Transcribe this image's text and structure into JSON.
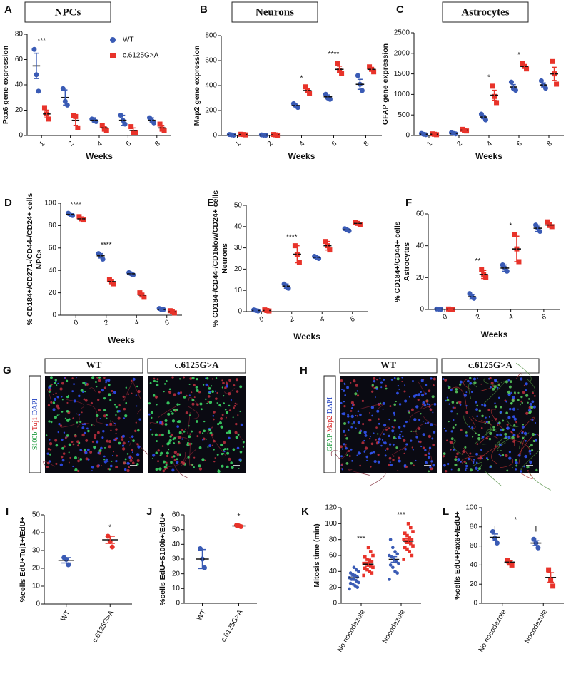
{
  "chart_data": [
    {
      "type": "dot",
      "panel": "A",
      "title": "NPCs",
      "ylabel": "Pax6 gene expression",
      "xlabel": "Weeks",
      "categories": [
        "1",
        "2",
        "4",
        "6",
        "8"
      ],
      "ylim": [
        0,
        80
      ],
      "yticks": [
        0,
        20,
        40,
        60,
        80
      ],
      "legend": "upper right",
      "series": [
        {
          "name": "WT",
          "color": "#3a5bb5",
          "marker": "circle",
          "points": [
            [
              68,
              48,
              35
            ],
            [
              37,
              27,
              24
            ],
            [
              13,
              12,
              11
            ],
            [
              16,
              12,
              9
            ],
            [
              14,
              12,
              10
            ]
          ],
          "mean": [
            55,
            30,
            12,
            12,
            12
          ],
          "sem": [
            10,
            6,
            2,
            4,
            2
          ]
        },
        {
          "name": "c.6125G>A",
          "color": "#e8332a",
          "marker": "square",
          "points": [
            [
              22,
              17,
              13
            ],
            [
              16,
              15,
              6
            ],
            [
              8,
              5,
              4
            ],
            [
              7,
              2,
              2
            ],
            [
              9,
              5,
              4
            ]
          ],
          "mean": [
            17,
            12,
            6,
            4,
            6
          ],
          "sem": [
            3,
            4,
            1,
            2,
            2
          ]
        }
      ],
      "annotations": [
        {
          "text": "***",
          "category": "1"
        }
      ]
    },
    {
      "type": "dot",
      "panel": "B",
      "title": "Neurons",
      "ylabel": "Map2 gene expression",
      "xlabel": "Weeks",
      "categories": [
        "1",
        "2",
        "4",
        "6",
        "8"
      ],
      "ylim": [
        0,
        800
      ],
      "yticks": [
        0,
        200,
        400,
        600,
        800
      ],
      "series": [
        {
          "color": "#3a5bb5",
          "marker": "circle",
          "points": [
            [
              8,
              5,
              3
            ],
            [
              5,
              3,
              2
            ],
            [
              255,
              240,
              225
            ],
            [
              330,
              300,
              290
            ],
            [
              480,
              410,
              360
            ]
          ],
          "mean": [
            5,
            3,
            240,
            310,
            410
          ],
          "sem": [
            2,
            1,
            10,
            15,
            40
          ]
        },
        {
          "color": "#e8332a",
          "marker": "square",
          "points": [
            [
              10,
              8,
              5
            ],
            [
              8,
              5,
              3
            ],
            [
              390,
              360,
              340
            ],
            [
              580,
              520,
              500
            ],
            [
              550,
              530,
              510
            ]
          ],
          "mean": [
            8,
            5,
            360,
            530,
            530
          ],
          "sem": [
            2,
            2,
            15,
            25,
            12
          ]
        }
      ],
      "annotations": [
        {
          "text": "*",
          "category": "4"
        },
        {
          "text": "****",
          "category": "6"
        }
      ]
    },
    {
      "type": "dot",
      "panel": "C",
      "title": "Astrocytes",
      "ylabel": "GFAP gene  expression",
      "xlabel": "Weeks",
      "categories": [
        "1",
        "2",
        "4",
        "6",
        "8"
      ],
      "ylim": [
        0,
        2500
      ],
      "yticks": [
        0,
        500,
        1000,
        1500,
        2000,
        2500
      ],
      "series": [
        {
          "color": "#3a5bb5",
          "marker": "circle",
          "points": [
            [
              50,
              30,
              20
            ],
            [
              70,
              50,
              40
            ],
            [
              520,
              450,
              380
            ],
            [
              1300,
              1150,
              1100
            ],
            [
              1330,
              1230,
              1150
            ]
          ],
          "mean": [
            30,
            50,
            450,
            1180,
            1230
          ],
          "sem": [
            10,
            10,
            40,
            60,
            50
          ]
        },
        {
          "color": "#e8332a",
          "marker": "square",
          "points": [
            [
              40,
              30,
              20
            ],
            [
              150,
              130,
              110
            ],
            [
              1200,
              950,
              800
            ],
            [
              1750,
              1680,
              1620
            ],
            [
              1800,
              1500,
              1250
            ]
          ],
          "mean": [
            30,
            130,
            980,
            1680,
            1500
          ],
          "sem": [
            10,
            12,
            120,
            40,
            160
          ]
        }
      ],
      "annotations": [
        {
          "text": "*",
          "category": "4"
        },
        {
          "text": "*",
          "category": "6"
        }
      ]
    },
    {
      "type": "dot",
      "panel": "D",
      "ylabel": [
        "% CD184+/CD271-/CD44-/CD24+ cells",
        "NPCs"
      ],
      "xlabel": "Weeks",
      "categories": [
        "0",
        "2",
        "4",
        "6"
      ],
      "ylim": [
        0,
        100
      ],
      "yticks": [
        0,
        20,
        40,
        60,
        80,
        100
      ],
      "series": [
        {
          "color": "#3a5bb5",
          "marker": "circle",
          "points": [
            [
              91,
              90,
              89
            ],
            [
              55,
              53,
              50
            ],
            [
              38,
              37,
              36
            ],
            [
              6,
              5,
              5
            ]
          ],
          "mean": [
            90,
            53,
            37,
            5
          ],
          "sem": [
            1,
            2,
            1,
            0.5
          ]
        },
        {
          "color": "#e8332a",
          "marker": "square",
          "points": [
            [
              88,
              86,
              85
            ],
            [
              32,
              30,
              28
            ],
            [
              20,
              18,
              16
            ],
            [
              4,
              3,
              2
            ]
          ],
          "mean": [
            86,
            30,
            18,
            3
          ],
          "sem": [
            1,
            2,
            1,
            0.5
          ]
        }
      ],
      "annotations": [
        {
          "text": "****",
          "category": "0"
        },
        {
          "text": "****",
          "category": "2"
        }
      ]
    },
    {
      "type": "dot",
      "panel": "E",
      "ylabel": [
        "% CD184-/CD44-/CD15low/CD24+ cells",
        "Neurons"
      ],
      "xlabel": "Weeks",
      "categories": [
        "0",
        "2",
        "4",
        "6"
      ],
      "ylim": [
        0,
        50
      ],
      "yticks": [
        0,
        10,
        20,
        30,
        40,
        50
      ],
      "series": [
        {
          "color": "#3a5bb5",
          "marker": "circle",
          "points": [
            [
              0.8,
              0.5,
              0.3
            ],
            [
              13,
              12,
              11
            ],
            [
              26,
              25.5,
              25
            ],
            [
              39,
              38.5,
              38
            ]
          ],
          "mean": [
            0.5,
            12,
            25.5,
            38.5
          ],
          "sem": [
            0.2,
            1,
            0.4,
            0.4
          ]
        },
        {
          "color": "#e8332a",
          "marker": "square",
          "points": [
            [
              0.8,
              0.5,
              0.3
            ],
            [
              31,
              27,
              23
            ],
            [
              33,
              31,
              29
            ],
            [
              42,
              41.5,
              41
            ]
          ],
          "mean": [
            0.5,
            27,
            31,
            41.5
          ],
          "sem": [
            0.2,
            4,
            2,
            0.5
          ]
        }
      ],
      "annotations": [
        {
          "text": "****",
          "category": "2"
        }
      ]
    },
    {
      "type": "dot",
      "panel": "F",
      "ylabel": [
        "% CD184+/CD44+ cells",
        "Astrocytes"
      ],
      "xlabel": "Weeks",
      "categories": [
        "0",
        "2",
        "4",
        "6"
      ],
      "ylim": [
        0,
        60
      ],
      "yticks": [
        0,
        20,
        40,
        60
      ],
      "series": [
        {
          "color": "#3a5bb5",
          "marker": "circle",
          "points": [
            [
              0.3,
              0.2,
              0.1
            ],
            [
              10,
              8,
              7
            ],
            [
              28,
              26,
              24
            ],
            [
              53,
              51,
              49
            ]
          ],
          "mean": [
            0.2,
            8,
            26,
            51
          ],
          "sem": [
            0.1,
            1.5,
            2,
            2
          ]
        },
        {
          "color": "#e8332a",
          "marker": "square",
          "points": [
            [
              0.3,
              0.2,
              0.1
            ],
            [
              25,
              22,
              20
            ],
            [
              47,
              38,
              30
            ],
            [
              55,
              53,
              52
            ]
          ],
          "mean": [
            0.2,
            22,
            38,
            53
          ],
          "sem": [
            0.1,
            2.5,
            8,
            1.5
          ]
        }
      ],
      "annotations": [
        {
          "text": "**",
          "category": "2"
        },
        {
          "text": "*",
          "category": "4"
        }
      ]
    },
    {
      "type": "dot",
      "panel": "I",
      "ylabel": "%cells EdU+Tuj1+/EdU+",
      "categories": [
        "WT",
        "c.6125G>A"
      ],
      "ylim": [
        0,
        50
      ],
      "yticks": [
        0,
        10,
        20,
        30,
        40,
        50
      ],
      "series": [
        {
          "color": "#3a5bb5",
          "marker": "circle",
          "points": [
            [
              26,
              25,
              22
            ],
            null
          ],
          "mean": [
            24.5,
            null
          ],
          "sem": [
            1.5,
            null
          ]
        },
        {
          "color": "#e8332a",
          "marker": "circle",
          "points": [
            null,
            [
              38,
              35,
              32
            ]
          ],
          "mean": [
            null,
            36
          ],
          "sem": [
            null,
            2
          ]
        }
      ],
      "annotations": [
        {
          "text": "*",
          "category": "c.6125G>A"
        }
      ]
    },
    {
      "type": "dot",
      "panel": "J",
      "ylabel": "%cells EdU+S100b+/EdU+",
      "categories": [
        "WT",
        "c.6125G>A"
      ],
      "ylim": [
        0,
        60
      ],
      "yticks": [
        0,
        10,
        20,
        30,
        40,
        50,
        60
      ],
      "series": [
        {
          "color": "#3a5bb5",
          "marker": "circle",
          "points": [
            [
              37,
              30,
              24
            ],
            null
          ],
          "mean": [
            30,
            null
          ],
          "sem": [
            6.5,
            null
          ]
        },
        {
          "color": "#e8332a",
          "marker": "circle",
          "points": [
            null,
            [
              53,
              52.5,
              52
            ]
          ],
          "mean": [
            null,
            52.5
          ],
          "sem": [
            null,
            0.5
          ]
        }
      ],
      "annotations": [
        {
          "text": "*",
          "category": "c.6125G>A"
        }
      ]
    },
    {
      "type": "dot",
      "panel": "K",
      "ylabel": "Mitosis time (min)",
      "categories": [
        "No nocodazole",
        "Nocodazole"
      ],
      "ylim": [
        0,
        120
      ],
      "yticks": [
        0,
        20,
        40,
        60,
        80,
        100,
        120
      ],
      "series": [
        {
          "color": "#3a5bb5",
          "marker": "circle",
          "points": [
            [
              18,
              20,
              22,
              24,
              25,
              26,
              28,
              30,
              30,
              32,
              33,
              35,
              36,
              38,
              40,
              42,
              45
            ],
            [
              30,
              38,
              40,
              45,
              48,
              50,
              52,
              55,
              58,
              60,
              62,
              65,
              70,
              80
            ]
          ],
          "mean": [
            32,
            55
          ],
          "sem": [
            2,
            3.5
          ]
        },
        {
          "color": "#e8332a",
          "marker": "square",
          "points": [
            [
              35,
              38,
              40,
              42,
              44,
              45,
              47,
              48,
              50,
              50,
              52,
              54,
              55,
              58,
              60,
              65,
              70
            ],
            [
              55,
              60,
              65,
              68,
              70,
              72,
              75,
              78,
              78,
              80,
              80,
              82,
              85,
              88,
              90,
              95,
              100
            ]
          ],
          "mean": [
            49,
            78
          ],
          "sem": [
            2.5,
            3
          ]
        }
      ],
      "annotations": [
        {
          "text": "***",
          "category": "No nocodazole"
        },
        {
          "text": "***",
          "category": "Nocodazole"
        }
      ]
    },
    {
      "type": "dot",
      "panel": "L",
      "ylabel": "%cells EdU+Pax6+/EdU+",
      "categories": [
        "No nocodazole",
        "Nocodazole"
      ],
      "ylim": [
        0,
        100
      ],
      "yticks": [
        0,
        20,
        40,
        60,
        80,
        100
      ],
      "series": [
        {
          "color": "#3a5bb5",
          "marker": "circle",
          "points": [
            [
              75,
              68,
              63
            ],
            [
              67,
              63,
              58
            ]
          ],
          "mean": [
            69,
            63
          ],
          "sem": [
            3.5,
            2.5
          ]
        },
        {
          "color": "#e8332a",
          "marker": "square",
          "points": [
            [
              45,
              42,
              40
            ],
            [
              35,
              25,
              18
            ]
          ],
          "mean": [
            43,
            27
          ],
          "sem": [
            1.5,
            5
          ]
        }
      ],
      "annotations": [
        {
          "text": "*",
          "bracket": true
        }
      ]
    }
  ],
  "image_panels": [
    {
      "panel": "G",
      "headers": [
        "WT",
        "c.6125G>A"
      ],
      "header_colors": [
        "#2a3fa0",
        "#e02020"
      ],
      "stains": [
        {
          "text": "S100b",
          "color": "#1a9a3a"
        },
        {
          "text": "Tuj1",
          "color": "#d62020"
        },
        {
          "text": "DAPI",
          "color": "#2040c0"
        }
      ]
    },
    {
      "panel": "H",
      "headers": [
        "WT",
        "c.6125G>A"
      ],
      "header_colors": [
        "#2a3fa0",
        "#e02020"
      ],
      "stains": [
        {
          "text": "GFAP",
          "color": "#1a9a3a"
        },
        {
          "text": "Map2",
          "color": "#d62020"
        },
        {
          "text": "DAPI",
          "color": "#2040c0"
        }
      ]
    }
  ]
}
